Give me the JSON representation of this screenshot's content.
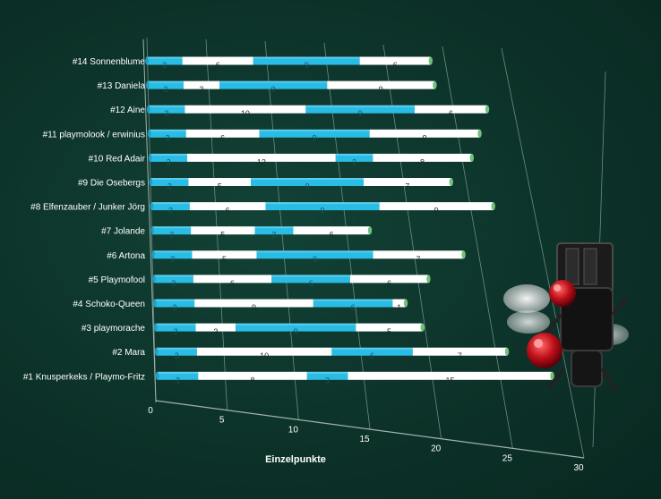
{
  "chart_data": {
    "type": "bar",
    "orientation": "horizontal",
    "stacked": true,
    "title": "",
    "xlabel": "Einzelpunkte",
    "ylabel": "",
    "xlim": [
      0,
      30
    ],
    "xticks": [
      "0",
      "5",
      "10",
      "15",
      "20",
      "25",
      "30"
    ],
    "grid": true,
    "legend": "none",
    "colors": {
      "odd_segment": "#29bde6",
      "even_segment": "#ffffff",
      "end_cap": "#6fc27a",
      "label_blue": "#1a4f63",
      "label_white": "#2a2a2a"
    },
    "categories": [
      "#14 Sonnenblume",
      "#13 Daniela",
      "#12 Aine",
      "#11 playmolook / erwinius",
      "#10 Red Adair",
      "#9 Die Osebergs",
      "#8 Elfenzauber / Junker Jörg",
      "#7 Jolande",
      "#6 Artona",
      "#5 Playmofool",
      "#4 Schoko-Queen",
      "#3 playmorache",
      "#2 Mara",
      "#1 Knusperkeks / Playmo-Fritz"
    ],
    "segments": [
      [
        3,
        6,
        9,
        6
      ],
      [
        3,
        3,
        9,
        9
      ],
      [
        3,
        10,
        9,
        6
      ],
      [
        3,
        6,
        9,
        9
      ],
      [
        3,
        12,
        3,
        8
      ],
      [
        3,
        5,
        9,
        7
      ],
      [
        3,
        6,
        9,
        9
      ],
      [
        3,
        5,
        3,
        6
      ],
      [
        3,
        5,
        9,
        7
      ],
      [
        3,
        6,
        6,
        6
      ],
      [
        3,
        9,
        6,
        1
      ],
      [
        3,
        3,
        9,
        5
      ],
      [
        3,
        10,
        6,
        7
      ],
      [
        3,
        8,
        3,
        15
      ]
    ]
  },
  "decoration": {
    "icon": "fly-icon"
  }
}
